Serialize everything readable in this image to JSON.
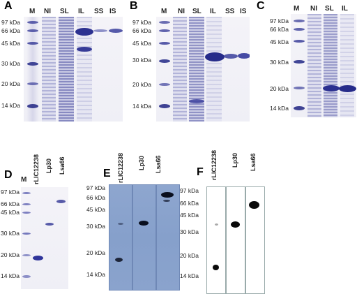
{
  "panels": {
    "A": {
      "letter": "A",
      "lanes": [
        "M",
        "NI",
        "SL",
        "IL",
        "SS",
        "IS"
      ],
      "markers": [
        "97 kDa",
        "66 kDa",
        "45 kDa",
        "30 kDa",
        "20 kDa",
        "14 kDa"
      ]
    },
    "B": {
      "letter": "B",
      "lanes": [
        "M",
        "NI",
        "SL",
        "IL",
        "SS",
        "IS"
      ],
      "markers": [
        "97 kDa",
        "66 kDa",
        "45 kDa",
        "30 kDa",
        "20 kDa",
        "14 kDa"
      ]
    },
    "C": {
      "letter": "C",
      "lanes": [
        "M",
        "NI",
        "SL",
        "IL"
      ],
      "markers": [
        "97 kDa",
        "66 kDa",
        "45 kDa",
        "30 kDa",
        "20 kDa",
        "14 kDa"
      ]
    },
    "D": {
      "letter": "D",
      "lanes": [
        "M",
        "rLIC12238",
        "Lp30",
        "Lsa66"
      ],
      "markers": [
        "97 kDa",
        "66 kDa",
        "45 kDa",
        "30 kDa",
        "20 kDa",
        "14 kDa"
      ]
    },
    "E": {
      "letter": "E",
      "lanes": [
        "rLIC12238",
        "Lp30",
        "Lsa66"
      ],
      "markers": [
        "97 kDa",
        "66 kDa",
        "45 kDa",
        "30 kDa",
        "20 kDa",
        "14 kDa"
      ]
    },
    "F": {
      "letter": "F",
      "lanes": [
        "rLIC12238",
        "Lp30",
        "Lsa66"
      ],
      "markers": [
        "97 kDa",
        "66 kDa",
        "45 kDa",
        "30 kDa",
        "20 kDa",
        "14 kDa"
      ]
    }
  },
  "colors": {
    "coomassie": "#3b3f9a",
    "blot_background": "#8aa3cd",
    "blot_band": "#0a0f1e"
  }
}
